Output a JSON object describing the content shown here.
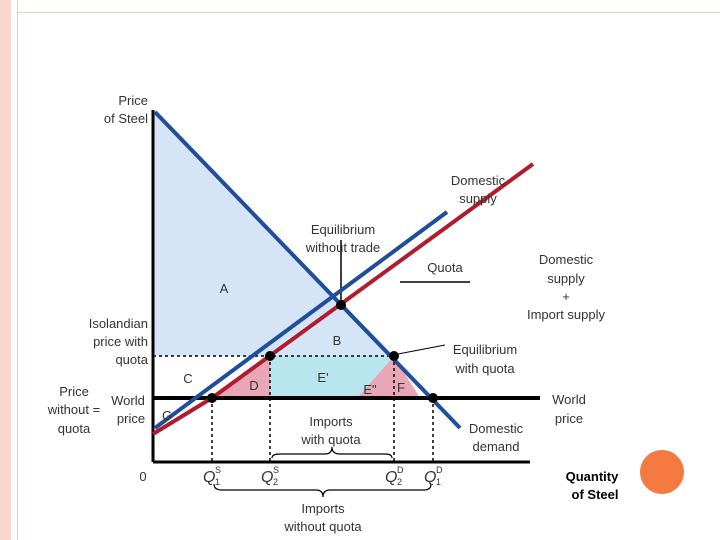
{
  "axes": {
    "y_label_1": "Price",
    "y_label_2": "of Steel",
    "x_label_1": "Quantity",
    "x_label_2": "of Steel",
    "origin": "0"
  },
  "curves": {
    "domestic_supply_1": "Domestic",
    "domestic_supply_2": "supply",
    "domestic_plus_import_1": "Domestic",
    "domestic_plus_import_2": "supply",
    "domestic_plus_import_3": "+",
    "domestic_plus_import_4": "Import supply",
    "domestic_demand_1": "Domestic",
    "domestic_demand_2": "demand",
    "world_price_1": "World",
    "world_price_2": "price",
    "quota": "Quota"
  },
  "annotations": {
    "eq_no_trade_1": "Equilibrium",
    "eq_no_trade_2": "without trade",
    "eq_quota_1": "Equilibrium",
    "eq_quota_2": "with quota",
    "isolandian_price_1": "Isolandian",
    "isolandian_price_2": "price with",
    "isolandian_price_3": "quota",
    "price_without_1": "Price",
    "price_without_2": "without =",
    "price_without_3": "quota",
    "world_1": "World",
    "world_2": "price",
    "imports_with_1": "Imports",
    "imports_with_2": "with quota",
    "imports_without_1": "Imports",
    "imports_without_2": "without quota"
  },
  "areas": {
    "a": "A",
    "b": "B",
    "c": "C",
    "d": "D",
    "e_prime": "E'",
    "e_double": "E\"",
    "f": "F",
    "g": "G"
  },
  "quantities": {
    "q1s_main": "Q",
    "q1s_sub": "1",
    "q1s_sup": "S",
    "q2s_main": "Q",
    "q2s_sub": "2",
    "q2s_sup": "S",
    "q2d_main": "Q",
    "q2d_sub": "2",
    "q2d_sup": "D",
    "q1d_main": "Q",
    "q1d_sub": "1",
    "q1d_sup": "D"
  },
  "colors": {
    "supply": "#1f4e9a",
    "demand": "#1f4e9a",
    "import_supply": "#b01c2e",
    "world_price": "#000000",
    "area_a": "#d6e4f7",
    "area_b": "#b7e6ef",
    "area_d": "#e8a6b7",
    "frame": "#f6d9cc",
    "accent_dot": "#f47a42"
  }
}
